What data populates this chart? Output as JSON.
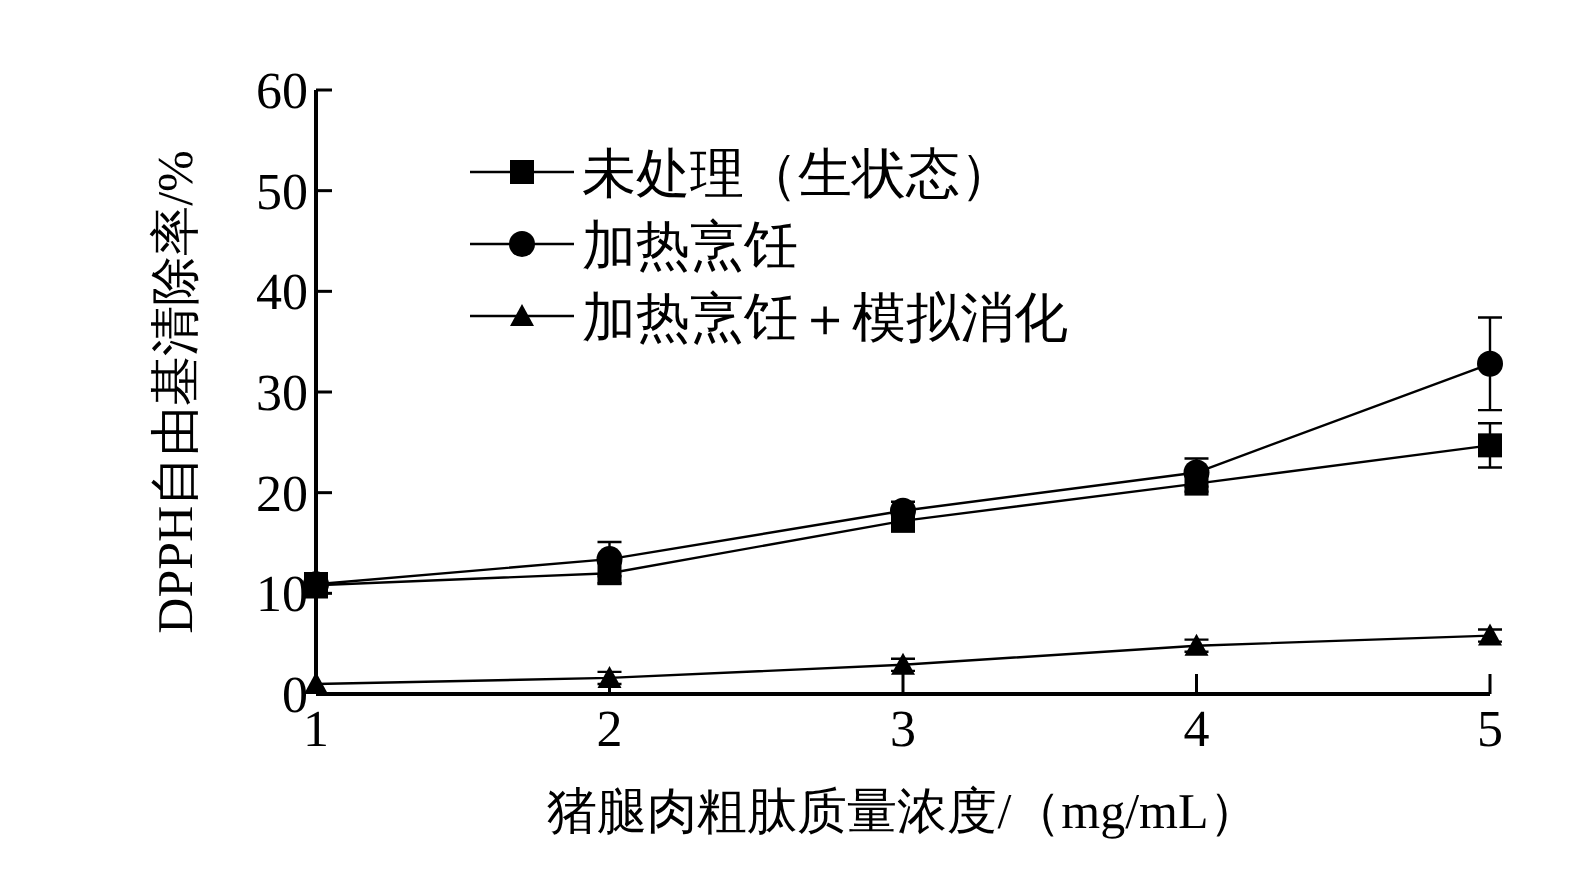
{
  "chart_data": {
    "type": "line",
    "xlabel": "猪腿肉粗肽质量浓度/（mg/mL）",
    "ylabel": "DPPH自由基清除率/%",
    "x": [
      1,
      2,
      3,
      4,
      5
    ],
    "xlim": [
      1,
      5
    ],
    "xticks": [
      1,
      2,
      3,
      4,
      5
    ],
    "ylim": [
      0,
      60
    ],
    "yticks": [
      0,
      10,
      20,
      30,
      40,
      50,
      60
    ],
    "legend": "top left",
    "grid": false,
    "line_style": "solid",
    "series": [
      {
        "name": "未处理（生状态）",
        "color": "#000000",
        "marker": "square",
        "values": [
          10.8,
          12.0,
          17.2,
          20.9,
          24.7
        ],
        "errors": [
          1.2,
          1.0,
          null,
          0.8,
          2.2
        ]
      },
      {
        "name": "加热烹饪",
        "color": "#000000",
        "marker": "circle",
        "values": [
          10.9,
          13.4,
          18.2,
          22.0,
          32.8
        ],
        "errors": [
          null,
          1.7,
          0.9,
          1.4,
          4.6
        ]
      },
      {
        "name": "加热烹饪＋模拟消化",
        "color": "#000000",
        "marker": "triangle",
        "values": [
          1.0,
          1.6,
          2.9,
          4.8,
          5.8
        ],
        "errors": [
          null,
          0.6,
          0.6,
          0.6,
          0.6
        ]
      }
    ]
  }
}
